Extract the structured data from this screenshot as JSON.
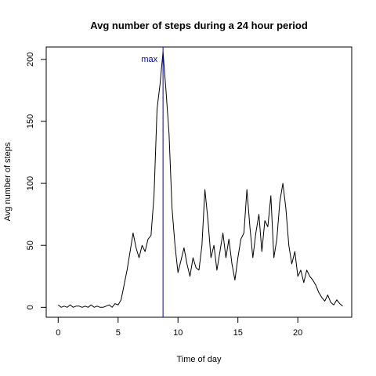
{
  "chart_data": {
    "type": "line",
    "title": "Avg number of steps during a 24 hour period",
    "xlabel": "Time of day",
    "ylabel": "Avg number of steps",
    "xlim": [
      -1,
      24.5
    ],
    "ylim": [
      -8,
      210
    ],
    "x_ticks": [
      0,
      5,
      10,
      15,
      20
    ],
    "y_ticks": [
      0,
      50,
      100,
      150,
      200
    ],
    "grid": false,
    "legend": "none",
    "line_color": "#000000",
    "annotation": {
      "label": "max",
      "x": 8.75,
      "color": "#0000cc"
    },
    "series": [
      {
        "x": [
          0.0,
          0.25,
          0.5,
          0.75,
          1.0,
          1.25,
          1.5,
          1.75,
          2.0,
          2.25,
          2.5,
          2.75,
          3.0,
          3.25,
          3.5,
          3.75,
          4.0,
          4.25,
          4.5,
          4.75,
          5.0,
          5.25,
          5.5,
          5.75,
          6.0,
          6.25,
          6.5,
          6.75,
          7.0,
          7.25,
          7.5,
          7.75,
          8.0,
          8.25,
          8.5,
          8.75,
          9.0,
          9.25,
          9.5,
          9.75,
          10.0,
          10.25,
          10.5,
          10.75,
          11.0,
          11.25,
          11.5,
          11.75,
          12.0,
          12.25,
          12.5,
          12.75,
          13.0,
          13.25,
          13.5,
          13.75,
          14.0,
          14.25,
          14.5,
          14.75,
          15.0,
          15.25,
          15.5,
          15.75,
          16.0,
          16.25,
          16.5,
          16.75,
          17.0,
          17.25,
          17.5,
          17.75,
          18.0,
          18.25,
          18.5,
          18.75,
          19.0,
          19.25,
          19.5,
          19.75,
          20.0,
          20.25,
          20.5,
          20.75,
          21.0,
          21.25,
          21.5,
          21.75,
          22.0,
          22.25,
          22.5,
          22.75,
          23.0,
          23.25,
          23.5,
          23.75
        ],
        "values": [
          2,
          0,
          1,
          0,
          2,
          0,
          1,
          1,
          0,
          1,
          0,
          2,
          0,
          1,
          0,
          0,
          1,
          2,
          0,
          3,
          2,
          6,
          18,
          30,
          45,
          60,
          48,
          40,
          50,
          45,
          55,
          58,
          90,
          160,
          180,
          206,
          175,
          140,
          80,
          50,
          28,
          38,
          48,
          35,
          25,
          40,
          32,
          30,
          50,
          95,
          70,
          40,
          50,
          30,
          45,
          60,
          40,
          55,
          35,
          22,
          40,
          55,
          60,
          95,
          65,
          40,
          60,
          75,
          45,
          70,
          65,
          90,
          40,
          55,
          85,
          100,
          80,
          50,
          35,
          45,
          25,
          30,
          20,
          30,
          25,
          22,
          18,
          12,
          8,
          5,
          10,
          4,
          2,
          6,
          3,
          1
        ]
      }
    ]
  }
}
